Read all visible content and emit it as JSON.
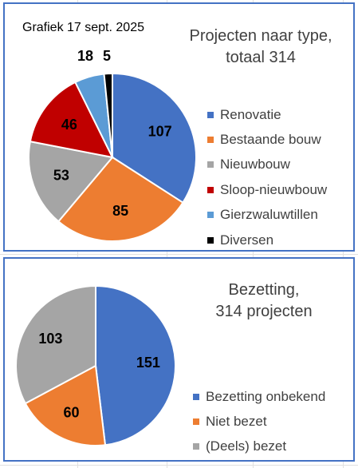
{
  "colors": {
    "blue": "#4472c4",
    "orange": "#ed7d31",
    "gray": "#a5a5a5",
    "red": "#c00000",
    "lightblue": "#5b9bd5",
    "black": "#000000",
    "panel_border": "#4472c4"
  },
  "date_label": "Grafiek 17 sept. 2025",
  "chart_data": [
    {
      "type": "pie",
      "title_lines": [
        "Projecten naar type,",
        "totaal 314"
      ],
      "categories": [
        "Renovatie",
        "Bestaande bouw",
        "Nieuwbouw",
        "Sloop-nieuwbouw",
        "Gierzwaluwtillen",
        "Diversen"
      ],
      "values": [
        107,
        85,
        53,
        46,
        18,
        5
      ],
      "colors": [
        "#4472c4",
        "#ed7d31",
        "#a5a5a5",
        "#c00000",
        "#5b9bd5",
        "#000000"
      ],
      "data_labels": [
        "107",
        "85",
        "53",
        "46",
        "18",
        "5"
      ],
      "legend_position": "right"
    },
    {
      "type": "pie",
      "title_lines": [
        "Bezetting,",
        "314 projecten"
      ],
      "categories": [
        "Bezetting onbekend",
        "Niet bezet",
        "(Deels) bezet"
      ],
      "values": [
        151,
        60,
        103
      ],
      "colors": [
        "#4472c4",
        "#ed7d31",
        "#a5a5a5"
      ],
      "data_labels": [
        "151",
        "60",
        "103"
      ],
      "legend_position": "right"
    }
  ]
}
